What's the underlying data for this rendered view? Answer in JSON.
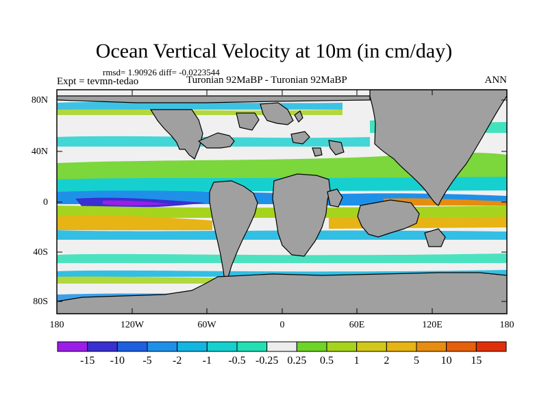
{
  "title": "Ocean Vertical Velocity at 10m (in cm/day)",
  "stats_line": "rmsd= 1.90926 diff= -0.0223544",
  "experiment": "Expt = tevmn-tedao",
  "subtitle": "Turonian  92MaBP - Turonian  92MaBP",
  "season": "ANN",
  "map": {
    "land_color": "#a0a0a0",
    "ocean_base_color": "#f0f0f0",
    "y_axis_labels": [
      "80N",
      "40N",
      "0",
      "40S",
      "80S"
    ],
    "x_axis_labels": [
      "180",
      "120W",
      "60W",
      "0",
      "60E",
      "120E",
      "180"
    ]
  },
  "colorbar": {
    "colors": [
      "#9b1ee8",
      "#3a2fd0",
      "#1f5fe0",
      "#1f90e8",
      "#12b6e0",
      "#16d0d0",
      "#22dfb4",
      "#ededed",
      "#6ed428",
      "#a6d41e",
      "#d2c81a",
      "#e6b414",
      "#e68c10",
      "#e6600c",
      "#e0300a"
    ],
    "labels": [
      "-15",
      "-10",
      "-5",
      "-2",
      "-1",
      "-0.5",
      "-0.25",
      "0.25",
      "0.5",
      "1",
      "2",
      "5",
      "10",
      "15"
    ]
  }
}
